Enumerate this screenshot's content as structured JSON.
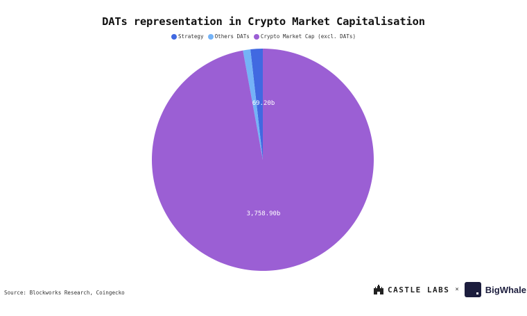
{
  "chart_data": {
    "type": "pie",
    "title": "DATs representation in Crypto Market Capitalisation",
    "legend_position": "top",
    "categories": [
      "Strategy",
      "Others DATs",
      "Crypto Market Cap (excl. DATs)"
    ],
    "values": [
      69.2,
      42.0,
      3758.9
    ],
    "units": "billions USD",
    "colors": [
      "#4169e1",
      "#74b3f7",
      "#9b5fd4"
    ],
    "data_labels": [
      "69.20b",
      "",
      "3,758.90b"
    ],
    "start_angle_deg": 0,
    "direction": "counterclockwise-from-top"
  },
  "title": "DATs representation in Crypto Market Capitalisation",
  "legend": [
    {
      "label": "Strategy",
      "color": "#4169e1"
    },
    {
      "label": "Others DATs",
      "color": "#74b3f7"
    },
    {
      "label": "Crypto Market Cap (excl. DATs)",
      "color": "#9b5fd4"
    }
  ],
  "labels": {
    "strategy": "69.20b",
    "market": "3,758.90b"
  },
  "source": "Source: Blockworks Research, Coingecko",
  "logos": {
    "castle": "CASTLE LABS",
    "times": "×",
    "whale": "BigWhale"
  }
}
